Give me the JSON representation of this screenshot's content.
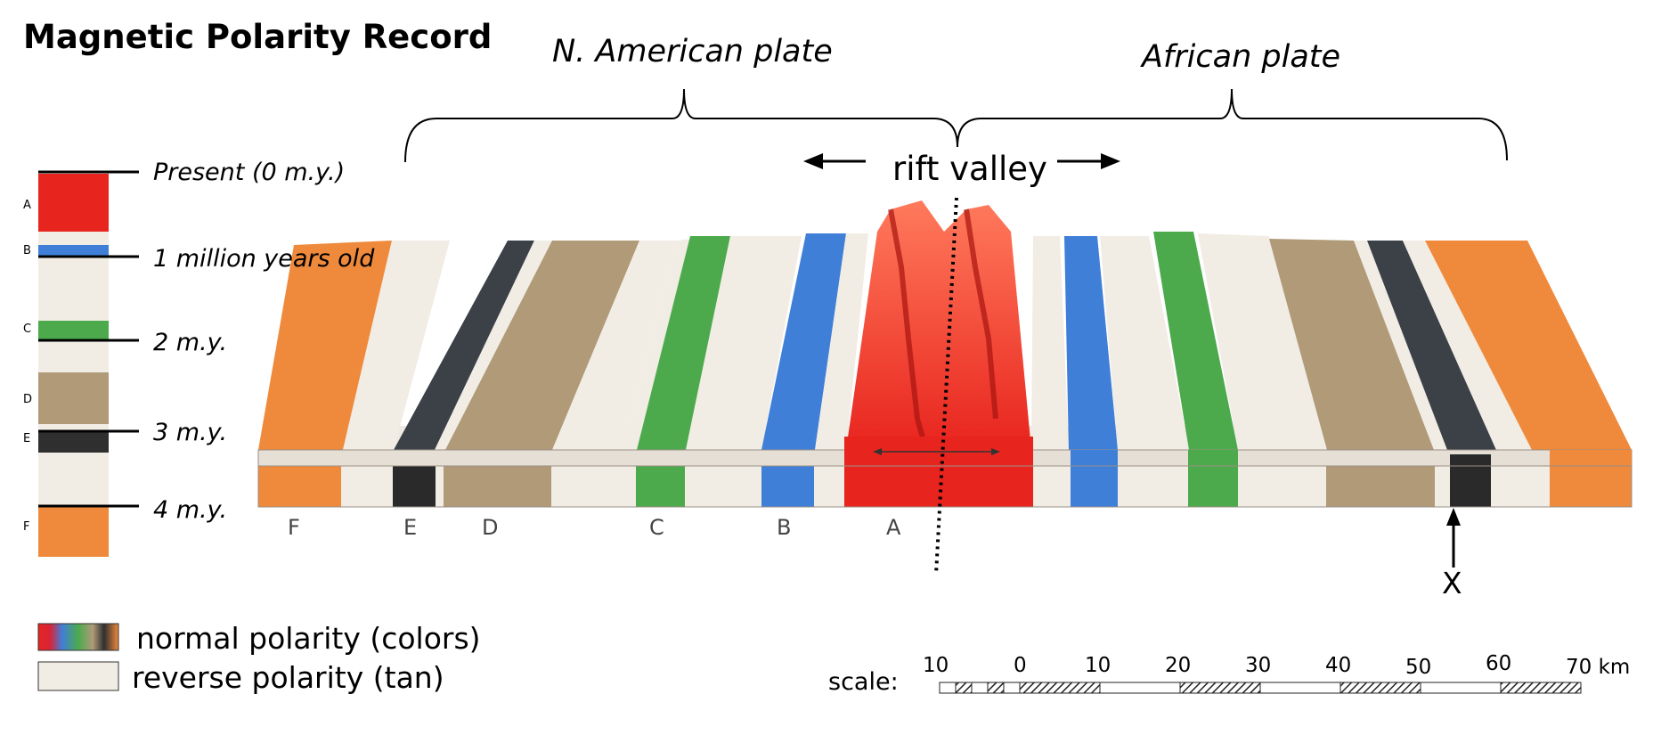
{
  "title": "Magnetic Polarity Record",
  "plates": {
    "left": "N. American plate",
    "right": "African plate"
  },
  "rift_label": "rift valley",
  "ages": [
    "Present (0 m.y.)",
    "1 million years old",
    "2 m.y.",
    "3 m.y.",
    "4 m.y."
  ],
  "column_letters": [
    "A",
    "B",
    "C",
    "D",
    "E",
    "F"
  ],
  "band_letters": [
    "F",
    "E",
    "D",
    "C",
    "B",
    "A"
  ],
  "marker_label": "X",
  "legend": {
    "normal": "normal polarity (colors)",
    "reverse": "reverse polarity (tan)"
  },
  "scale": {
    "label": "scale:",
    "ticks": [
      "10",
      "0",
      "10",
      "20",
      "30",
      "40",
      "50",
      "60",
      "70 km"
    ]
  },
  "colors": {
    "A": "#e8241e",
    "B": "#3f7fd8",
    "C": "#4caa4c",
    "D": "#b09a78",
    "E": "#2f2f30",
    "F": "#ef8a3c",
    "reverse": "#f1ece4"
  }
}
